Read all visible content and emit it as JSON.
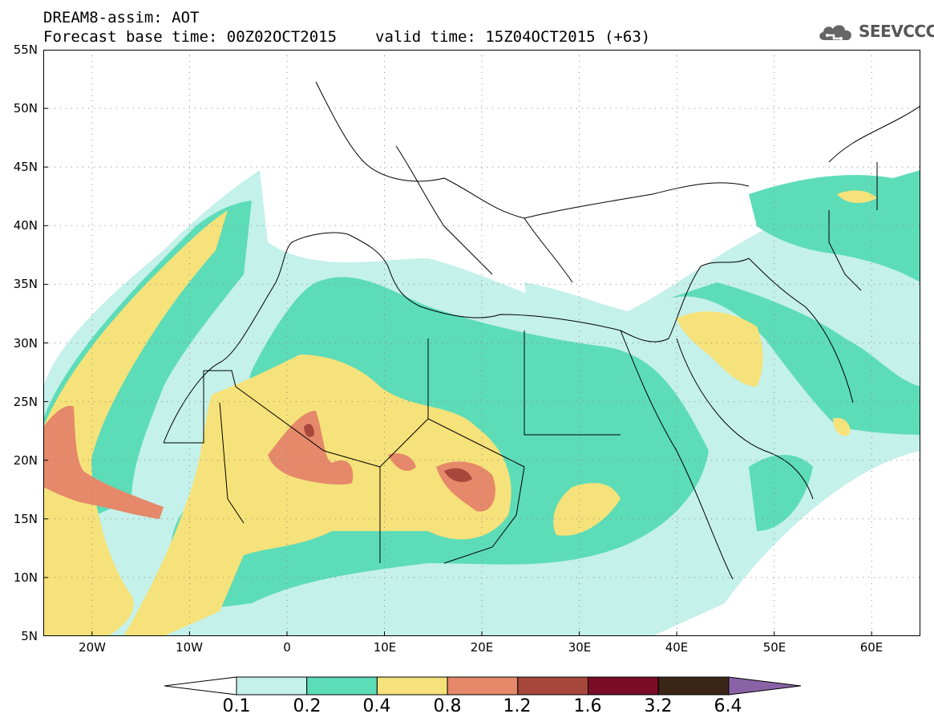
{
  "title": {
    "line1": "DREAM8-assim: AOT",
    "line2_base": "Forecast base time: 00Z02OCT2015",
    "line2_valid": "valid time: 15Z04OCT2015 (+63)"
  },
  "logo": {
    "text": "SEEVCCC",
    "icon": "cloud-icon"
  },
  "map": {
    "lon_range": [
      -25,
      65
    ],
    "lat_range": [
      5,
      55
    ],
    "y_ticks": [
      "55N",
      "50N",
      "45N",
      "40N",
      "35N",
      "30N",
      "25N",
      "20N",
      "15N",
      "10N",
      "5N"
    ],
    "x_ticks": [
      "20W",
      "10W",
      "0",
      "10E",
      "20E",
      "30E",
      "40E",
      "50E",
      "60E"
    ],
    "grid": "dotted"
  },
  "legend": {
    "labels": [
      "0.1",
      "0.2",
      "0.4",
      "0.8",
      "1.2",
      "1.6",
      "3.2",
      "6.4"
    ],
    "colors": [
      "#ffffff",
      "#c4f1ea",
      "#5ddcb8",
      "#f6e27a",
      "#e5896a",
      "#a8473c",
      "#7a0c25",
      "#3b2517",
      "#8a63a6"
    ]
  }
}
